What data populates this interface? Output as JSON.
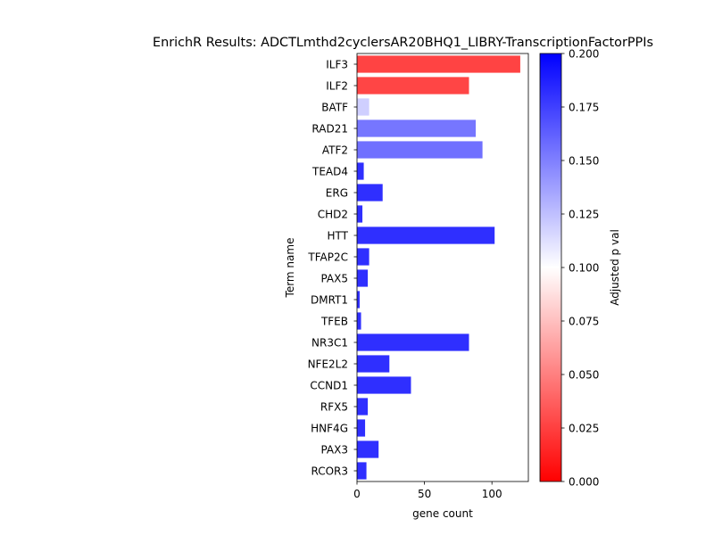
{
  "chart_data": {
    "type": "bar",
    "orientation": "horizontal",
    "title": "EnrichR Results: ADCTLmthd2cyclersAR20BHQ1_LIBRY-TranscriptionFactorPPIs",
    "xlabel": "gene count",
    "ylabel": "Term name",
    "xlim": [
      0,
      127
    ],
    "xticks": [
      0,
      50,
      100
    ],
    "categories": [
      "ILF3",
      "ILF2",
      "BATF",
      "RAD21",
      "ATF2",
      "TEAD4",
      "ERG",
      "CHD2",
      "HTT",
      "TFAP2C",
      "PAX5",
      "DMRT1",
      "TFEB",
      "NR3C1",
      "NFE2L2",
      "CCND1",
      "RFX5",
      "HNF4G",
      "PAX3",
      "RCOR3"
    ],
    "values": [
      121,
      83,
      9,
      88,
      93,
      5,
      19,
      4,
      102,
      9,
      8,
      2,
      3,
      83,
      24,
      40,
      8,
      6,
      16,
      7
    ],
    "adjusted_p": [
      0.0135,
      0.014,
      0.122,
      0.163,
      0.166,
      0.196,
      0.196,
      0.196,
      0.196,
      0.196,
      0.196,
      0.196,
      0.196,
      0.196,
      0.196,
      0.196,
      0.196,
      0.196,
      0.196,
      0.196
    ],
    "colorbar": {
      "label": "Adjusted p val",
      "range": [
        0,
        0.2
      ],
      "ticks": [
        "0.000",
        "0.025",
        "0.050",
        "0.075",
        "0.100",
        "0.125",
        "0.150",
        "0.175",
        "0.200"
      ],
      "colormap": "bwr_r",
      "low_color": "#ff0000",
      "mid_color": "#ffffff",
      "high_color": "#0000ff"
    }
  }
}
